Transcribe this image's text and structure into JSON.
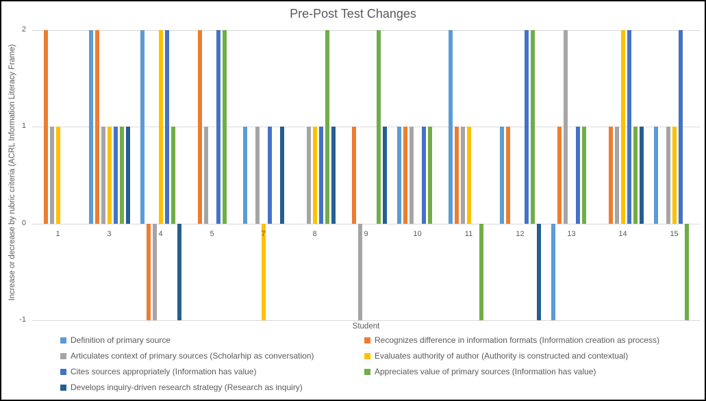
{
  "chart_data": {
    "type": "bar",
    "title": "Pre-Post Test Changes",
    "xlabel": "Student",
    "ylabel": "Increase or decrease by rubric criteria (ACRL Information Literacy Frame)",
    "categories": [
      "1",
      "3",
      "4",
      "5",
      "7",
      "8",
      "9",
      "10",
      "11",
      "12",
      "13",
      "14",
      "15"
    ],
    "ylim": [
      -1,
      2
    ],
    "yticks": [
      2,
      1,
      0,
      -1
    ],
    "grid": true,
    "legend_position": "bottom",
    "gridline_color": "#d9d9d9",
    "text_color": "#595959",
    "series": [
      {
        "name": "Definition of primary source",
        "color": "#5B9BD5",
        "values": [
          0,
          2,
          2,
          0,
          1,
          0,
          0,
          1,
          2,
          1,
          -1,
          0,
          1
        ]
      },
      {
        "name": "Recognizes difference in information formats (Information creation as process)",
        "color": "#ED7D31",
        "values": [
          2,
          2,
          -1,
          2,
          0,
          0,
          1,
          1,
          1,
          1,
          1,
          1,
          0
        ]
      },
      {
        "name": "Articulates context of primary sources (Scholarhip as conversation)",
        "color": "#A5A5A5",
        "values": [
          1,
          1,
          -1,
          1,
          1,
          1,
          -1,
          1,
          1,
          0,
          2,
          1,
          1
        ]
      },
      {
        "name": "Evaluates authority of author (Authority is constructed and contextual)",
        "color": "#FFC000",
        "values": [
          1,
          1,
          2,
          0,
          -1,
          1,
          0,
          0,
          1,
          0,
          0,
          2,
          1
        ]
      },
      {
        "name": "Cites sources appropriately (Information has value)",
        "color": "#4472C4",
        "values": [
          0,
          1,
          2,
          2,
          1,
          1,
          0,
          1,
          0,
          2,
          1,
          2,
          2
        ]
      },
      {
        "name": "Appreciates value of primary sources (Information has value)",
        "color": "#70AD47",
        "values": [
          0,
          1,
          1,
          2,
          0,
          2,
          2,
          1,
          -1,
          2,
          1,
          1,
          -1
        ]
      },
      {
        "name": "Develops inquiry-driven research strategy (Research as inquiry)",
        "color": "#255E91",
        "values": [
          0,
          1,
          -1,
          0,
          1,
          1,
          1,
          0,
          0,
          -1,
          0,
          1,
          0
        ]
      }
    ]
  }
}
